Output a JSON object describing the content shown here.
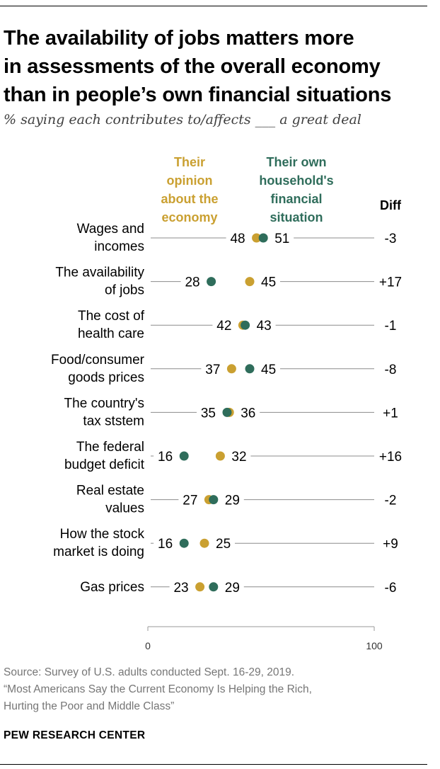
{
  "title_lines": [
    "The availability of jobs matters more",
    "in assessments of the overall economy",
    "than in people’s own financial situations"
  ],
  "subtitle": "% saying each contributes to/affects ___ a great deal",
  "colors": {
    "economy": "#caa031",
    "own": "#2f6d5b",
    "line": "#8c8c8c",
    "source": "#767676"
  },
  "chart_data": {
    "type": "scatter",
    "subtype": "dot-plot",
    "legend": {
      "economy": [
        "Their",
        "opinion",
        "about the",
        "economy"
      ],
      "own": [
        "Their own",
        "household's",
        "financial",
        "situation"
      ]
    },
    "diff_header": "Diff",
    "xlim": [
      0,
      100
    ],
    "ticks": [
      "0",
      "100"
    ],
    "rows": [
      {
        "label": [
          "Wages and",
          "incomes"
        ],
        "economy": 48,
        "own": 51,
        "diff": "-3"
      },
      {
        "label": [
          "The availability",
          "of jobs"
        ],
        "economy": 45,
        "own": 28,
        "diff": "+17"
      },
      {
        "label": [
          "The cost of",
          "health care"
        ],
        "economy": 42,
        "own": 43,
        "diff": "-1"
      },
      {
        "label": [
          "Food/consumer",
          "goods prices"
        ],
        "economy": 37,
        "own": 45,
        "diff": "-8"
      },
      {
        "label": [
          "The country's",
          "tax ststem"
        ],
        "economy": 36,
        "own": 35,
        "diff": "+1"
      },
      {
        "label": [
          "The federal",
          "budget deficit"
        ],
        "economy": 32,
        "own": 16,
        "diff": "+16"
      },
      {
        "label": [
          "Real estate",
          "values"
        ],
        "economy": 27,
        "own": 29,
        "diff": "-2"
      },
      {
        "label": [
          "How the stock",
          "market is doing"
        ],
        "economy": 25,
        "own": 16,
        "diff": "+9"
      },
      {
        "label": [
          "Gas prices"
        ],
        "economy": 23,
        "own": 29,
        "diff": "-6"
      }
    ]
  },
  "source_lines": [
    "Source: Survey of U.S. adults conducted Sept. 16-29, 2019.",
    "“Most Americans Say the Current Economy Is Helping the Rich,",
    "Hurting the Poor and Middle Class”"
  ],
  "organization": "PEW RESEARCH CENTER"
}
